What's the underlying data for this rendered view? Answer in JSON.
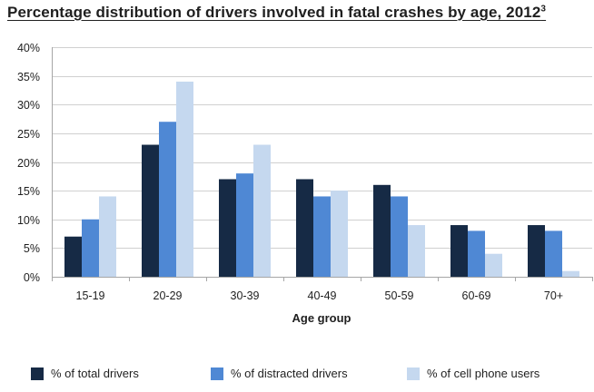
{
  "title": "Percentage distribution  of drivers involved in fatal crashes by age, 2012",
  "title_superscript": "3",
  "colors": {
    "total": "#162a45",
    "distracted": "#4f88d4",
    "cellphone": "#c5d8ef",
    "grid": "#d0d0d0",
    "axis": "#a6a6a6",
    "text": "#1f1f1f"
  },
  "chart_data": {
    "type": "bar",
    "title": "Percentage distribution  of drivers involved in fatal crashes by age, 2012",
    "xlabel": "Age group",
    "ylabel": "",
    "ylim": [
      0,
      40
    ],
    "yticks": [
      0,
      5,
      10,
      15,
      20,
      25,
      30,
      35,
      40
    ],
    "ytick_labels": [
      "0%",
      "5%",
      "10%",
      "15%",
      "20%",
      "25%",
      "30%",
      "35%",
      "40%"
    ],
    "grid": true,
    "legend_position": "bottom",
    "categories": [
      "15-19",
      "20-29",
      "30-39",
      "40-49",
      "50-59",
      "60-69",
      "70+"
    ],
    "series": [
      {
        "name": "% of total drivers",
        "color_key": "total",
        "values": [
          7,
          23,
          17,
          17,
          16,
          9,
          9
        ]
      },
      {
        "name": "% of distracted drivers",
        "color_key": "distracted",
        "values": [
          10,
          27,
          18,
          14,
          14,
          8,
          8
        ]
      },
      {
        "name": "% of cell phone users",
        "color_key": "cellphone",
        "values": [
          14,
          34,
          23,
          15,
          9,
          4,
          1
        ]
      }
    ]
  }
}
